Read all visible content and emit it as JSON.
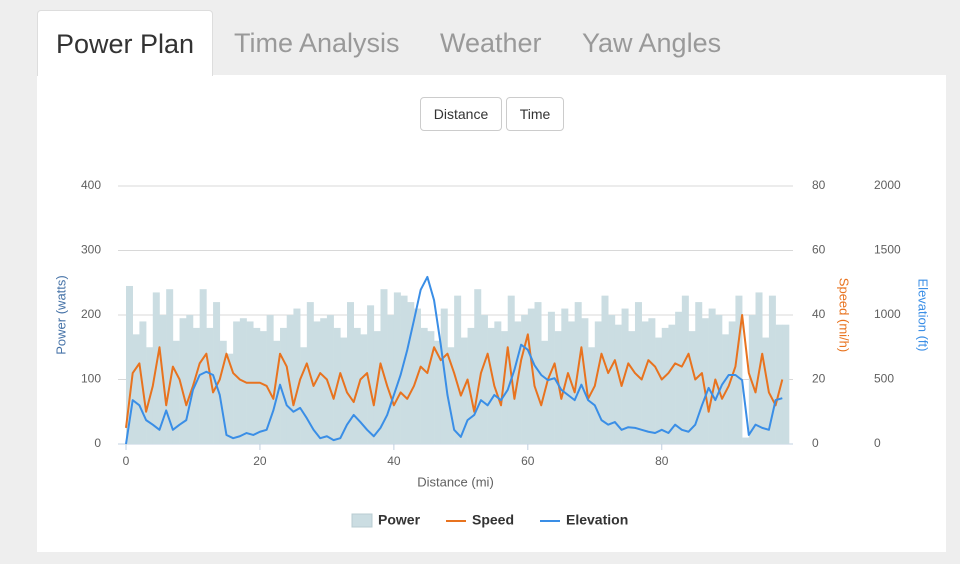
{
  "tabs": [
    "Power Plan",
    "Time Analysis",
    "Weather",
    "Yaw Angles"
  ],
  "buttons": [
    "Distance",
    "Time"
  ],
  "chart_data": {
    "type": "line",
    "xlabel": "Distance (mi)",
    "ylabel": "Power (watts)",
    "y2label": "Speed (mi/h)",
    "y3label": "Elevation (ft)",
    "xlim": [
      0,
      99
    ],
    "xticks": [
      0,
      20,
      40,
      60,
      80
    ],
    "ylim": [
      0,
      400
    ],
    "yticks": [
      0,
      100,
      200,
      300,
      400
    ],
    "y2lim": [
      0,
      80
    ],
    "y2ticks": [
      0,
      20,
      40,
      60,
      80
    ],
    "y3lim": [
      0,
      2000
    ],
    "y3ticks": [
      0,
      500,
      1000,
      1500,
      2000
    ],
    "grid": true,
    "legend": "bottom",
    "x": [
      0,
      1,
      2,
      3,
      4,
      5,
      6,
      7,
      8,
      9,
      10,
      11,
      12,
      13,
      14,
      15,
      16,
      17,
      18,
      19,
      20,
      21,
      22,
      23,
      24,
      25,
      26,
      27,
      28,
      29,
      30,
      31,
      32,
      33,
      34,
      35,
      36,
      37,
      38,
      39,
      40,
      41,
      42,
      43,
      44,
      45,
      46,
      47,
      48,
      49,
      50,
      51,
      52,
      53,
      54,
      55,
      56,
      57,
      58,
      59,
      60,
      61,
      62,
      63,
      64,
      65,
      66,
      67,
      68,
      69,
      70,
      71,
      72,
      73,
      74,
      75,
      76,
      77,
      78,
      79,
      80,
      81,
      82,
      83,
      84,
      85,
      86,
      87,
      88,
      89,
      90,
      91,
      92,
      93,
      94,
      95,
      96,
      97,
      98
    ],
    "series": [
      {
        "name": "Power",
        "type": "area",
        "color": "#cbdde2",
        "axis": "y",
        "values": [
          245,
          170,
          190,
          150,
          235,
          200,
          240,
          160,
          195,
          200,
          180,
          240,
          180,
          220,
          160,
          140,
          190,
          195,
          190,
          180,
          175,
          200,
          160,
          180,
          200,
          210,
          150,
          220,
          190,
          195,
          200,
          180,
          165,
          220,
          180,
          170,
          215,
          175,
          240,
          200,
          235,
          230,
          220,
          210,
          180,
          175,
          160,
          210,
          150,
          230,
          165,
          180,
          240,
          200,
          180,
          190,
          175,
          230,
          190,
          200,
          210,
          220,
          160,
          205,
          175,
          210,
          190,
          220,
          195,
          150,
          190,
          230,
          200,
          185,
          210,
          175,
          220,
          190,
          195,
          165,
          180,
          185,
          205,
          230,
          175,
          220,
          195,
          210,
          200,
          170,
          190,
          230,
          10,
          200,
          235,
          165,
          230,
          185,
          185
        ]
      },
      {
        "name": "Speed",
        "type": "line",
        "color": "#e8731f",
        "axis": "y2",
        "values": [
          5,
          22,
          25,
          10,
          18,
          30,
          12,
          24,
          20,
          12,
          18,
          25,
          28,
          16,
          20,
          28,
          22,
          20,
          19,
          19,
          19,
          18,
          14,
          28,
          24,
          12,
          20,
          25,
          18,
          22,
          20,
          14,
          22,
          16,
          13,
          20,
          22,
          12,
          25,
          18,
          12,
          16,
          14,
          18,
          24,
          22,
          30,
          26,
          28,
          22,
          15,
          20,
          10,
          22,
          28,
          18,
          12,
          30,
          14,
          26,
          34,
          18,
          12,
          20,
          25,
          14,
          22,
          16,
          30,
          14,
          18,
          28,
          22,
          26,
          18,
          25,
          22,
          20,
          26,
          24,
          20,
          22,
          25,
          24,
          28,
          20,
          22,
          10,
          20,
          14,
          18,
          24,
          40,
          22,
          16,
          28,
          16,
          12,
          20
        ]
      },
      {
        "name": "Elevation",
        "type": "line",
        "color": "#3a8ee6",
        "axis": "y3",
        "values": [
          0,
          340,
          300,
          185,
          150,
          110,
          260,
          110,
          150,
          185,
          420,
          535,
          560,
          535,
          380,
          70,
          45,
          60,
          85,
          70,
          95,
          110,
          260,
          460,
          300,
          250,
          280,
          200,
          110,
          45,
          60,
          30,
          45,
          150,
          225,
          170,
          110,
          60,
          125,
          225,
          380,
          535,
          730,
          960,
          1195,
          1295,
          1115,
          770,
          380,
          110,
          55,
          185,
          225,
          340,
          300,
          380,
          340,
          420,
          575,
          770,
          730,
          610,
          535,
          495,
          510,
          420,
          380,
          340,
          460,
          340,
          300,
          185,
          150,
          170,
          110,
          130,
          125,
          110,
          95,
          85,
          110,
          85,
          150,
          110,
          95,
          150,
          300,
          435,
          340,
          460,
          535,
          535,
          495,
          70,
          150,
          125,
          110,
          340,
          355
        ]
      }
    ]
  }
}
